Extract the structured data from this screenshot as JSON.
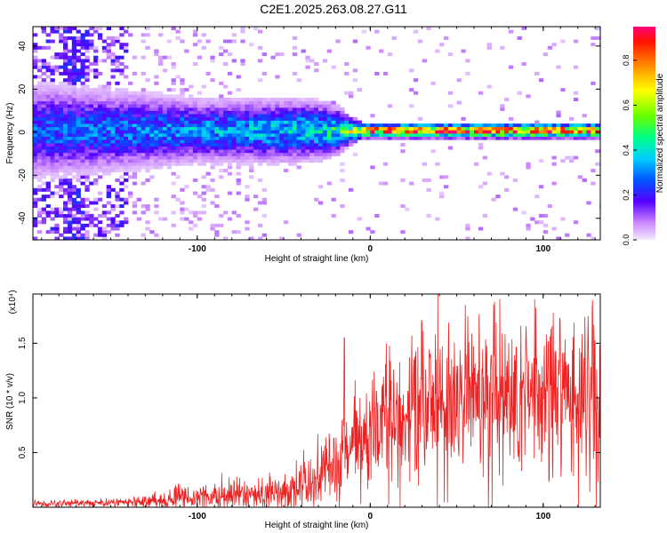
{
  "title": "C2E1.2025.263.08.27.G11",
  "colors": {
    "snr_line": "#ee2222",
    "axis": "#000000",
    "background": "#ffffff"
  },
  "chart_data": [
    {
      "type": "heatmap",
      "name": "spectrogram",
      "xlabel": "Height of straight line (km)",
      "ylabel": "Frequency (Hz)",
      "xlim": [
        -195,
        133
      ],
      "ylim": [
        -50,
        49
      ],
      "xticks": [
        -100,
        0,
        100
      ],
      "yticks": [
        -40,
        -20,
        0,
        20,
        40
      ],
      "yticklabels": [
        "-40",
        "-20",
        "0",
        "20",
        "40"
      ],
      "colorbar": {
        "label": "Normalized spectral amplitude",
        "range": [
          0.0,
          0.95
        ],
        "ticks": [
          0.0,
          0.2,
          0.4,
          0.6,
          0.8
        ],
        "ticklabels": [
          "0.0",
          "0.2",
          "0.4",
          "0.6",
          "0.8"
        ]
      },
      "band_profile": {
        "x": [
          -195,
          -160,
          -130,
          -100,
          -70,
          -45,
          -30,
          -20,
          -12,
          -5,
          0,
          20,
          60,
          100,
          133
        ],
        "halfwidth_hz": [
          18,
          16,
          14,
          12,
          12,
          12,
          11,
          9,
          5,
          3,
          3,
          3,
          3,
          3,
          3
        ],
        "peak_amplitude": [
          0.3,
          0.32,
          0.34,
          0.36,
          0.38,
          0.42,
          0.45,
          0.5,
          0.65,
          0.8,
          0.9,
          0.92,
          0.93,
          0.93,
          0.9
        ]
      }
    },
    {
      "type": "line",
      "name": "snr",
      "xlabel": "Height of straight line (km)",
      "ylabel": "SNR (10 * v/v)",
      "y_multiplier": "(x10⁴)",
      "xlim": [
        -195,
        133
      ],
      "ylim": [
        0,
        1.95
      ],
      "xticks": [
        -100,
        0,
        100
      ],
      "yticks": [
        0.5,
        1.0,
        1.5
      ],
      "yticklabels": [
        "0.5",
        "1.0",
        "1.5"
      ],
      "envelope": {
        "x": [
          -195,
          -150,
          -130,
          -110,
          -80,
          -50,
          -35,
          -25,
          -15,
          -5,
          5,
          20,
          40,
          60,
          80,
          100,
          120,
          133
        ],
        "mean": [
          0.03,
          0.04,
          0.06,
          0.08,
          0.1,
          0.14,
          0.22,
          0.32,
          0.45,
          0.6,
          0.75,
          0.85,
          0.95,
          1.0,
          1.02,
          1.0,
          0.98,
          0.95
        ],
        "spread": [
          0.02,
          0.02,
          0.04,
          0.06,
          0.08,
          0.1,
          0.15,
          0.2,
          0.25,
          0.3,
          0.35,
          0.4,
          0.45,
          0.45,
          0.45,
          0.45,
          0.45,
          0.45
        ]
      },
      "peaks": [
        {
          "x": -15,
          "y": 1.55
        },
        {
          "x": 39,
          "y": 1.95
        },
        {
          "x": 55,
          "y": 1.85
        },
        {
          "x": 95,
          "y": 1.9
        },
        {
          "x": 126,
          "y": 1.75
        }
      ]
    }
  ]
}
